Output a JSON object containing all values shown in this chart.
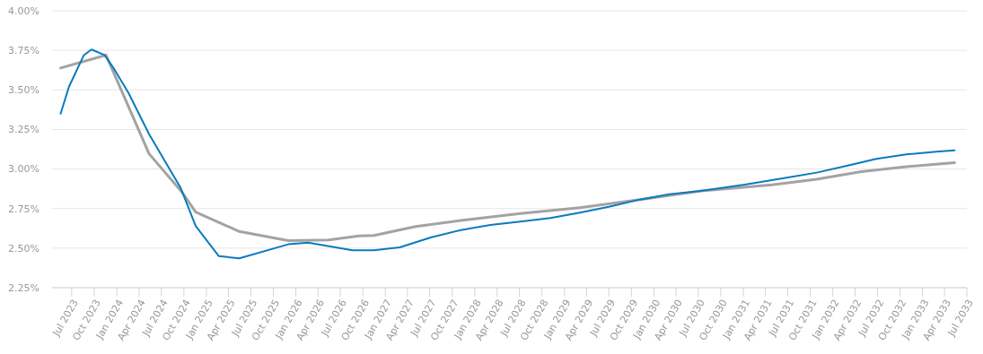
{
  "chart_data": {
    "type": "line",
    "grid": "y",
    "line_style": "solid",
    "marker": "none",
    "xlim": [
      "2023-04-12",
      "2033-07-01"
    ],
    "xticks": [
      {
        "value": "2023-07-01",
        "label": "Jul 2023"
      },
      {
        "value": "2023-10-01",
        "label": "Oct 2023"
      },
      {
        "value": "2024-01-01",
        "label": "Jan 2024"
      },
      {
        "value": "2024-04-01",
        "label": "Apr 2024"
      },
      {
        "value": "2024-07-01",
        "label": "Jul 2024"
      },
      {
        "value": "2024-10-01",
        "label": "Oct 2024"
      },
      {
        "value": "2025-01-01",
        "label": "Jan 2025"
      },
      {
        "value": "2025-04-01",
        "label": "Apr 2025"
      },
      {
        "value": "2025-07-01",
        "label": "Jul 2025"
      },
      {
        "value": "2025-10-01",
        "label": "Oct 2025"
      },
      {
        "value": "2026-01-01",
        "label": "Jan 2026"
      },
      {
        "value": "2026-04-01",
        "label": "Apr 2026"
      },
      {
        "value": "2026-07-01",
        "label": "Jul 2026"
      },
      {
        "value": "2026-10-01",
        "label": "Oct 2026"
      },
      {
        "value": "2027-01-01",
        "label": "Jan 2027"
      },
      {
        "value": "2027-04-01",
        "label": "Apr 2027"
      },
      {
        "value": "2027-07-01",
        "label": "Jul 2027"
      },
      {
        "value": "2027-10-01",
        "label": "Oct 2027"
      },
      {
        "value": "2028-01-01",
        "label": "Jan 2028"
      },
      {
        "value": "2028-04-01",
        "label": "Apr 2028"
      },
      {
        "value": "2028-07-01",
        "label": "Jul 2028"
      },
      {
        "value": "2028-10-01",
        "label": "Oct 2028"
      },
      {
        "value": "2029-01-01",
        "label": "Jan 2029"
      },
      {
        "value": "2029-04-01",
        "label": "Apr 2029"
      },
      {
        "value": "2029-07-01",
        "label": "Jul 2029"
      },
      {
        "value": "2029-10-01",
        "label": "Oct 2029"
      },
      {
        "value": "2030-01-01",
        "label": "Jan 2030"
      },
      {
        "value": "2030-04-01",
        "label": "Apr 2030"
      },
      {
        "value": "2030-07-01",
        "label": "Jul 2030"
      },
      {
        "value": "2030-10-01",
        "label": "Oct 2030"
      },
      {
        "value": "2031-01-01",
        "label": "Jan 2031"
      },
      {
        "value": "2031-04-01",
        "label": "Apr 2031"
      },
      {
        "value": "2031-07-01",
        "label": "Jul 2031"
      },
      {
        "value": "2031-10-01",
        "label": "Oct 2031"
      },
      {
        "value": "2032-01-01",
        "label": "Jan 2032"
      },
      {
        "value": "2032-04-01",
        "label": "Apr 2032"
      },
      {
        "value": "2032-07-01",
        "label": "Jul 2032"
      },
      {
        "value": "2032-10-01",
        "label": "Oct 2032"
      },
      {
        "value": "2033-01-01",
        "label": "Jan 2033"
      },
      {
        "value": "2033-04-01",
        "label": "Apr 2033"
      },
      {
        "value": "2033-07-01",
        "label": "Jul 2033"
      }
    ],
    "ylim": [
      2.25,
      4
    ],
    "yticks": [
      {
        "value": 2.25,
        "label": "2.25%"
      },
      {
        "value": 2.5,
        "label": "2.50%"
      },
      {
        "value": 2.75,
        "label": "2.75%"
      },
      {
        "value": 3,
        "label": "3.00%"
      },
      {
        "value": 3.25,
        "label": "3.25%"
      },
      {
        "value": 3.5,
        "label": "3.50%"
      },
      {
        "value": 3.75,
        "label": "3.75%"
      },
      {
        "value": 4,
        "label": "4.00%"
      }
    ],
    "series": [
      {
        "color": "#0a7bbd",
        "x": [
          "2023-05-17",
          "2023-06-20",
          "2023-08-20",
          "2023-09-20",
          "2023-11-12",
          "2023-12-18",
          "2024-02-18",
          "2024-05-12",
          "2024-09-18",
          "2024-11-18",
          "2025-02-20",
          "2025-05-15",
          "2025-12-01",
          "2026-02-20",
          "2026-08-20",
          "2026-11-15",
          "2027-03-01",
          "2027-07-05",
          "2027-11-05",
          "2028-03-05",
          "2028-07-05",
          "2028-11-05",
          "2029-03-05",
          "2029-07-05",
          "2029-11-05",
          "2030-03-05",
          "2030-07-05",
          "2031-01-01",
          "2031-06-27",
          "2031-10-27",
          "2032-02-27",
          "2032-06-27",
          "2032-10-27",
          "2033-02-27",
          "2033-05-12"
        ],
        "values": [
          3.35,
          3.52,
          3.72,
          3.755,
          3.72,
          3.64,
          3.48,
          3.22,
          2.88,
          2.64,
          2.45,
          2.435,
          2.524,
          2.535,
          2.486,
          2.486,
          2.505,
          2.567,
          2.614,
          2.647,
          2.668,
          2.69,
          2.724,
          2.762,
          2.807,
          2.841,
          2.86,
          2.9,
          2.945,
          2.977,
          3.02,
          3.064,
          3.092,
          3.109,
          3.118
        ]
      },
      {
        "color": "#a3a3a3",
        "x": [
          "2023-05-17",
          "2023-11-18",
          "2024-05-12",
          "2024-09-25",
          "2024-11-18",
          "2025-05-15",
          "2025-12-01",
          "2026-05-15",
          "2026-09-15",
          "2026-11-15",
          "2027-05-05",
          "2027-11-05",
          "2028-07-05",
          "2029-03-05",
          "2029-11-05",
          "2030-07-05",
          "2031-04-27",
          "2031-10-27",
          "2032-04-27",
          "2032-10-27",
          "2033-05-12"
        ],
        "values": [
          3.638,
          3.72,
          3.096,
          2.85,
          2.728,
          2.605,
          2.547,
          2.552,
          2.577,
          2.58,
          2.637,
          2.675,
          2.718,
          2.756,
          2.807,
          2.86,
          2.9,
          2.935,
          2.983,
          3.015,
          3.04
        ]
      }
    ]
  }
}
